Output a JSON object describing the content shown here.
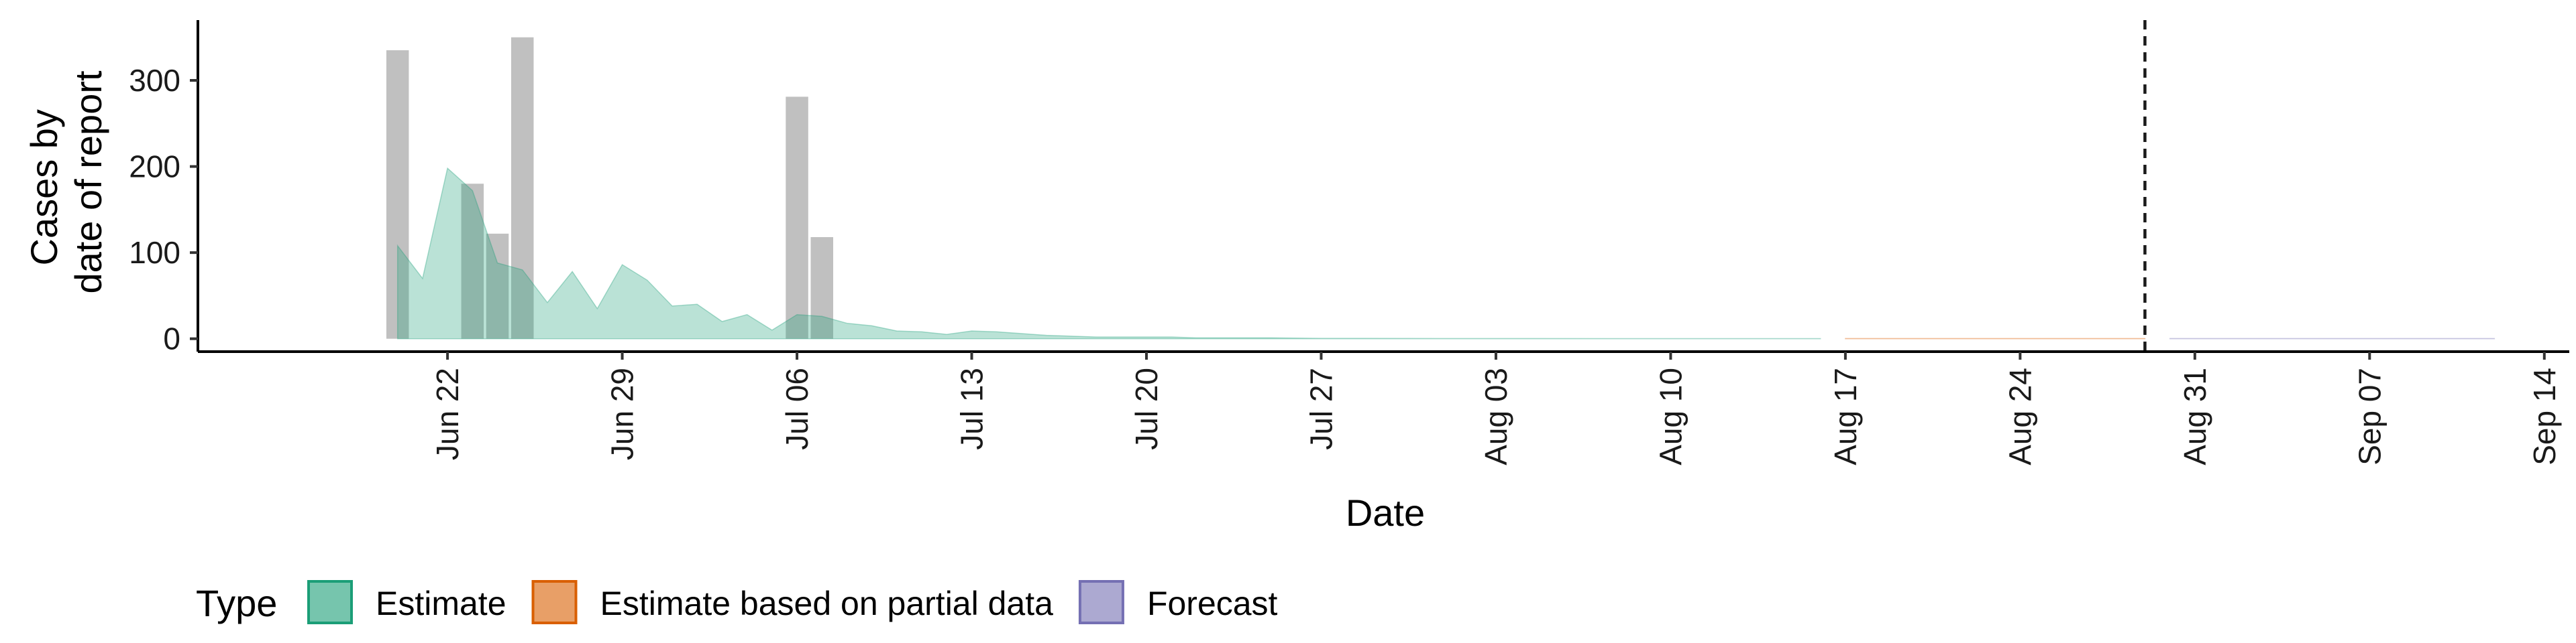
{
  "chart_data": {
    "type": "area",
    "xlabel": "Date",
    "ylabel": [
      "Cases by",
      "date of report"
    ],
    "yticks": [
      0,
      100,
      200,
      300
    ],
    "ylim": [
      -15,
      370
    ],
    "xlim": [
      "2020-06-12",
      "2020-09-15"
    ],
    "xticks": [
      {
        "date": "2020-06-22",
        "label": "Jun 22"
      },
      {
        "date": "2020-06-29",
        "label": "Jun 29"
      },
      {
        "date": "2020-07-06",
        "label": "Jul 06"
      },
      {
        "date": "2020-07-13",
        "label": "Jul 13"
      },
      {
        "date": "2020-07-20",
        "label": "Jul 20"
      },
      {
        "date": "2020-07-27",
        "label": "Jul 27"
      },
      {
        "date": "2020-08-03",
        "label": "Aug 03"
      },
      {
        "date": "2020-08-10",
        "label": "Aug 10"
      },
      {
        "date": "2020-08-17",
        "label": "Aug 17"
      },
      {
        "date": "2020-08-24",
        "label": "Aug 24"
      },
      {
        "date": "2020-08-31",
        "label": "Aug 31"
      },
      {
        "date": "2020-09-07",
        "label": "Sep 07"
      },
      {
        "date": "2020-09-14",
        "label": "Sep 14"
      }
    ],
    "reported_cases": [
      {
        "date": "2020-06-20",
        "value": 335
      },
      {
        "date": "2020-06-23",
        "value": 180
      },
      {
        "date": "2020-06-24",
        "value": 122
      },
      {
        "date": "2020-06-25",
        "value": 350
      },
      {
        "date": "2020-07-06",
        "value": 281
      },
      {
        "date": "2020-07-07",
        "value": 118
      }
    ],
    "vline_date": "2020-08-29",
    "legend_title": "Type",
    "legend_position": "bottom",
    "colors": {
      "bars": "#bdbdbd",
      "estimate": "#1b9e77",
      "estimate_partial": "#d95f02",
      "forecast": "#7570b3"
    },
    "series": [
      {
        "name": "Estimate",
        "color": "#1b9e77",
        "points": [
          [
            "2020-06-20",
            108
          ],
          [
            "2020-06-21",
            70
          ],
          [
            "2020-06-22",
            198
          ],
          [
            "2020-06-23",
            172
          ],
          [
            "2020-06-24",
            88
          ],
          [
            "2020-06-25",
            80
          ],
          [
            "2020-06-26",
            42
          ],
          [
            "2020-06-27",
            78
          ],
          [
            "2020-06-28",
            35
          ],
          [
            "2020-06-29",
            86
          ],
          [
            "2020-06-30",
            68
          ],
          [
            "2020-07-01",
            38
          ],
          [
            "2020-07-02",
            40
          ],
          [
            "2020-07-03",
            20
          ],
          [
            "2020-07-04",
            28
          ],
          [
            "2020-07-05",
            10
          ],
          [
            "2020-07-06",
            28
          ],
          [
            "2020-07-07",
            26
          ],
          [
            "2020-07-08",
            18
          ],
          [
            "2020-07-09",
            15
          ],
          [
            "2020-07-10",
            9
          ],
          [
            "2020-07-11",
            8
          ],
          [
            "2020-07-12",
            5
          ],
          [
            "2020-07-13",
            9
          ],
          [
            "2020-07-14",
            8
          ],
          [
            "2020-07-15",
            6
          ],
          [
            "2020-07-16",
            4
          ],
          [
            "2020-07-17",
            3
          ],
          [
            "2020-07-18",
            2
          ],
          [
            "2020-07-19",
            2
          ],
          [
            "2020-07-20",
            2
          ],
          [
            "2020-07-21",
            2
          ],
          [
            "2020-07-22",
            1
          ],
          [
            "2020-07-23",
            1
          ],
          [
            "2020-07-24",
            1
          ],
          [
            "2020-07-25",
            1
          ],
          [
            "2020-07-27",
            0.5
          ],
          [
            "2020-08-01",
            0.3
          ],
          [
            "2020-08-08",
            0.2
          ],
          [
            "2020-08-16",
            0.2
          ]
        ]
      },
      {
        "name": "Estimate based on partial data",
        "color": "#d95f02",
        "points": [
          [
            "2020-08-17",
            0.3
          ],
          [
            "2020-08-29",
            0.3
          ]
        ]
      },
      {
        "name": "Forecast",
        "color": "#7570b3",
        "points": [
          [
            "2020-08-30",
            0.3
          ],
          [
            "2020-09-12",
            0.3
          ]
        ]
      }
    ]
  }
}
